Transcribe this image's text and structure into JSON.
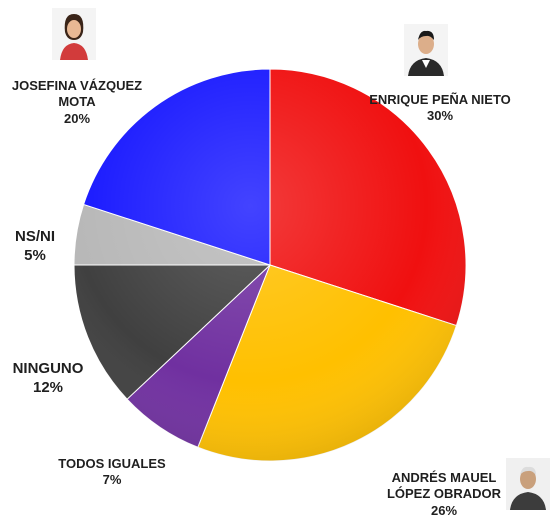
{
  "chart_data": {
    "type": "pie",
    "title": "",
    "slices": [
      {
        "name": "ENRIQUE PEÑA NIETO",
        "value": 30,
        "label": "30%",
        "color": "#f01010"
      },
      {
        "name": "ANDRÉS MAUEL LÓPEZ OBRADOR",
        "value": 26,
        "label": "26%",
        "color": "#ffc000"
      },
      {
        "name": "TODOS IGUALES",
        "value": 7,
        "label": "7%",
        "color": "#7030a0"
      },
      {
        "name": "NINGUNO",
        "value": 12,
        "label": "12%",
        "color": "#404040"
      },
      {
        "name": "NS/NI",
        "value": 5,
        "label": "5%",
        "color": "#b8b8b8"
      },
      {
        "name": "JOSEFINA VÁZQUEZ MOTA",
        "value": 20,
        "label": "20%",
        "color": "#1a1aff"
      }
    ],
    "legend": "none"
  },
  "labels": {
    "pena_name": "ENRIQUE PEÑA NIETO",
    "pena_pct": "30%",
    "amlo_name_1": "ANDRÉS MAUEL",
    "amlo_name_2": "LÓPEZ OBRADOR",
    "amlo_pct": "26%",
    "todos_name": "TODOS IGUALES",
    "todos_pct": "7%",
    "ninguno_name": "NINGUNO",
    "ninguno_pct": "12%",
    "nsni_name": "NS/NI",
    "nsni_pct": "5%",
    "jvm_name_1": "JOSEFINA VÁZQUEZ",
    "jvm_name_2": "MOTA",
    "jvm_pct": "20%"
  },
  "photos": {
    "jvm": "woman-portrait-icon",
    "pena": "man-portrait-icon",
    "amlo": "man-portrait-icon"
  }
}
